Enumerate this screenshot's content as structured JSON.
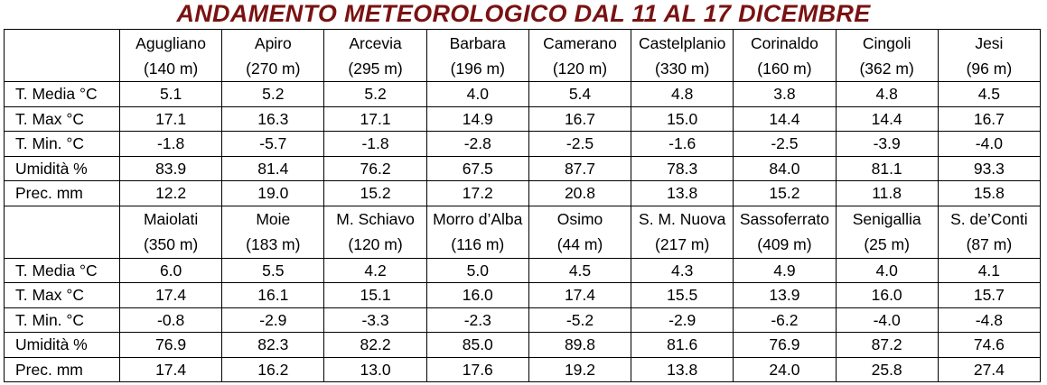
{
  "title": "ANDAMENTO METEOROLOGICO DAL 11 AL 17 DICEMBRE",
  "blocks": [
    {
      "stations": [
        {
          "name": "Agugliano",
          "altitude": "(140 m)"
        },
        {
          "name": "Apiro",
          "altitude": "(270 m)"
        },
        {
          "name": "Arcevia",
          "altitude": "(295 m)"
        },
        {
          "name": "Barbara",
          "altitude": "(196 m)"
        },
        {
          "name": "Camerano",
          "altitude": "(120 m)"
        },
        {
          "name": "Castelplanio",
          "altitude": "(330 m)"
        },
        {
          "name": "Corinaldo",
          "altitude": "(160 m)"
        },
        {
          "name": "Cingoli",
          "altitude": "(362 m)"
        },
        {
          "name": "Jesi",
          "altitude": "(96 m)"
        }
      ],
      "rows": [
        {
          "label": "T. Media °C",
          "values": [
            "5.1",
            "5.2",
            "5.2",
            "4.0",
            "5.4",
            "4.8",
            "3.8",
            "4.8",
            "4.5"
          ]
        },
        {
          "label": "T. Max °C",
          "values": [
            "17.1",
            "16.3",
            "17.1",
            "14.9",
            "16.7",
            "15.0",
            "14.4",
            "14.4",
            "16.7"
          ]
        },
        {
          "label": "T. Min. °C",
          "values": [
            "-1.8",
            "-5.7",
            "-1.8",
            "-2.8",
            "-2.5",
            "-1.6",
            "-2.5",
            "-3.9",
            "-4.0"
          ]
        },
        {
          "label": "Umidità %",
          "values": [
            "83.9",
            "81.4",
            "76.2",
            "67.5",
            "87.7",
            "78.3",
            "84.0",
            "81.1",
            "93.3"
          ]
        },
        {
          "label": "Prec. mm",
          "values": [
            "12.2",
            "19.0",
            "15.2",
            "17.2",
            "20.8",
            "13.8",
            "15.2",
            "11.8",
            "15.8"
          ]
        }
      ]
    },
    {
      "stations": [
        {
          "name": "Maiolati",
          "altitude": "(350 m)"
        },
        {
          "name": "Moie",
          "altitude": "(183 m)"
        },
        {
          "name": "M. Schiavo",
          "altitude": "(120 m)"
        },
        {
          "name": "Morro d’Alba",
          "altitude": "(116 m)"
        },
        {
          "name": "Osimo",
          "altitude": "(44 m)"
        },
        {
          "name": "S. M. Nuova",
          "altitude": "(217 m)"
        },
        {
          "name": "Sassoferrato",
          "altitude": "(409 m)"
        },
        {
          "name": "Senigallia",
          "altitude": "(25 m)"
        },
        {
          "name": "S. de’Conti",
          "altitude": "(87 m)"
        }
      ],
      "rows": [
        {
          "label": "T. Media °C",
          "values": [
            "6.0",
            "5.5",
            "4.2",
            "5.0",
            "4.5",
            "4.3",
            "4.9",
            "4.0",
            "4.1"
          ]
        },
        {
          "label": "T. Max °C",
          "values": [
            "17.4",
            "16.1",
            "15.1",
            "16.0",
            "17.4",
            "15.5",
            "13.9",
            "16.0",
            "15.7"
          ]
        },
        {
          "label": "T. Min. °C",
          "values": [
            "-0.8",
            "-2.9",
            "-3.3",
            "-2.3",
            "-5.2",
            "-2.9",
            "-6.2",
            "-4.0",
            "-4.8"
          ]
        },
        {
          "label": "Umidità %",
          "values": [
            "76.9",
            "82.3",
            "82.2",
            "85.0",
            "89.8",
            "81.6",
            "76.9",
            "87.2",
            "74.6"
          ]
        },
        {
          "label": "Prec. mm",
          "values": [
            "17.4",
            "16.2",
            "13.0",
            "17.6",
            "19.2",
            "13.8",
            "24.0",
            "25.8",
            "27.4"
          ]
        }
      ]
    }
  ]
}
